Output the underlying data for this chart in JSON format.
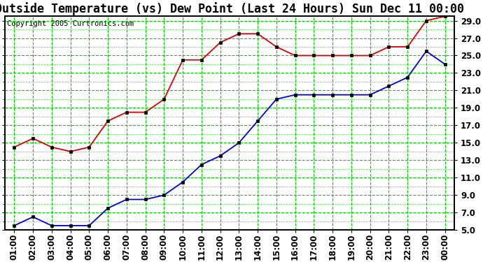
{
  "title": "Outside Temperature (vs) Dew Point (Last 24 Hours) Sun Dec 11 00:00",
  "copyright": "Copyright 2005 Curtronics.com",
  "x_labels": [
    "01:00",
    "02:00",
    "03:00",
    "04:00",
    "05:00",
    "06:00",
    "07:00",
    "08:00",
    "09:00",
    "10:00",
    "11:00",
    "12:00",
    "13:00",
    "14:00",
    "15:00",
    "16:00",
    "17:00",
    "18:00",
    "19:00",
    "20:00",
    "21:00",
    "22:00",
    "23:00",
    "00:00"
  ],
  "temp_data": [
    14.5,
    15.5,
    14.5,
    14.0,
    14.5,
    17.5,
    18.5,
    18.5,
    20.0,
    24.5,
    24.5,
    26.5,
    27.5,
    27.5,
    26.0,
    25.0,
    25.0,
    25.0,
    25.0,
    25.0,
    26.0,
    26.0,
    29.0,
    29.5
  ],
  "dew_data": [
    5.5,
    6.5,
    5.5,
    5.5,
    5.5,
    7.5,
    8.5,
    8.5,
    9.0,
    10.5,
    12.5,
    13.5,
    15.0,
    17.5,
    20.0,
    20.5,
    20.5,
    20.5,
    20.5,
    20.5,
    21.5,
    22.5,
    25.5,
    24.0
  ],
  "temp_color": "#dd0000",
  "dew_color": "#0000dd",
  "bg_color": "#ffffff",
  "plot_bg": "#ffffff",
  "grid_color": "#00cc00",
  "border_color": "#000000",
  "ylim_min": 5.0,
  "ylim_max": 29.5,
  "yticks": [
    5.0,
    7.0,
    9.0,
    11.0,
    13.0,
    15.0,
    17.0,
    19.0,
    21.0,
    23.0,
    25.0,
    27.0,
    29.0
  ],
  "title_fontsize": 12,
  "tick_fontsize": 8.5,
  "copyright_fontsize": 7.5,
  "marker_color": "#000000"
}
